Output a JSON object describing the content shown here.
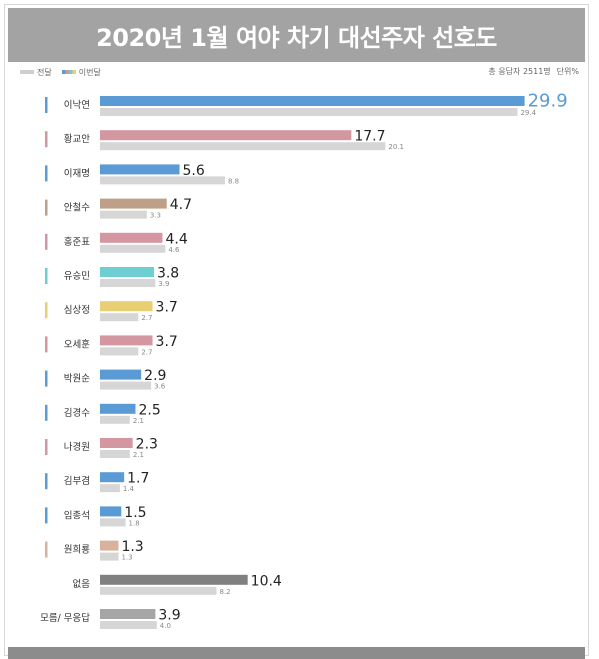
{
  "title": "2020년 1월 여야 차기 대선주자 선호도",
  "legend": {
    "previous_label": "전달",
    "current_label": "이번달"
  },
  "meta": {
    "respondents": "총 응답자 2511명",
    "unit": "단위%"
  },
  "chart_data": {
    "type": "bar",
    "orientation": "horizontal",
    "title": "2020년 1월 여야 차기 대선주자 선호도",
    "categories": [
      "이낙연",
      "황교안",
      "이재명",
      "안철수",
      "홍준표",
      "유승민",
      "심상정",
      "오세훈",
      "박원순",
      "김경수",
      "나경원",
      "김부겸",
      "임종석",
      "원희룡",
      "없음",
      "모름/ 무응답"
    ],
    "series": [
      {
        "name": "이번달",
        "values": [
          29.9,
          17.7,
          5.6,
          4.7,
          4.4,
          3.8,
          3.7,
          3.7,
          2.9,
          2.5,
          2.3,
          1.7,
          1.5,
          1.3,
          10.4,
          3.9
        ]
      },
      {
        "name": "전달",
        "values": [
          29.4,
          20.1,
          8.8,
          3.3,
          4.6,
          3.9,
          2.7,
          2.7,
          3.6,
          2.1,
          2.1,
          1.4,
          1.8,
          1.3,
          8.2,
          4.0
        ]
      }
    ],
    "current_value_labels": [
      "29.9",
      "17.7",
      "5.6",
      "4.7",
      "4.4",
      "3.8",
      "3.7",
      "3.7",
      "2.9",
      "2.5",
      "2.3",
      "1.7",
      "1.5",
      "1.3",
      "10.4",
      "3.9"
    ],
    "previous_value_labels": [
      "29.4",
      "20.1",
      "8.8",
      "3.3",
      "4.6",
      "3.9",
      "2.7",
      "2.7",
      "3.6",
      "2.1",
      "2.1",
      "1.4",
      "1.8",
      "1.3",
      "8.2",
      "4.0"
    ],
    "colors": [
      "#5b9bd5",
      "#d496a0",
      "#5b9bd5",
      "#bf9f87",
      "#d496a0",
      "#6dcfd1",
      "#e9cf74",
      "#d496a0",
      "#5b9bd5",
      "#5b9bd5",
      "#d496a0",
      "#5b9bd5",
      "#5b9bd5",
      "#d9b29e",
      "#808080",
      "#a6a6a6"
    ],
    "marker_colors": [
      "#5b9bd5",
      "#d496a0",
      "#5b9bd5",
      "#bf9f87",
      "#d496a0",
      "#6dcfd1",
      "#e9cf74",
      "#d496a0",
      "#5b9bd5",
      "#5b9bd5",
      "#d496a0",
      "#5b9bd5",
      "#5b9bd5",
      "#d9b29e",
      "",
      ""
    ],
    "previous_color": "#d6d6d6",
    "highlight_label_color": "#5b9bd5",
    "xlim": [
      0,
      30
    ]
  }
}
